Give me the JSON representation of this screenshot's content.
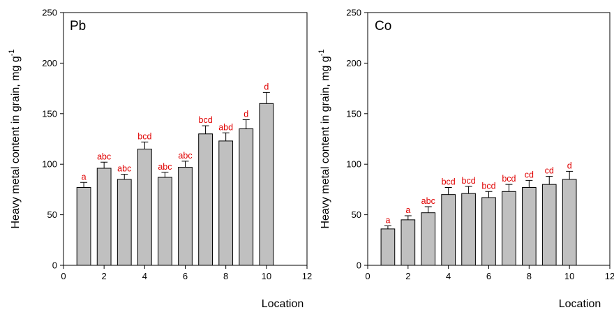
{
  "colors": {
    "bar_fill": "#c0c0c0",
    "bar_stroke": "#000000",
    "letter": "#e00000",
    "axis": "#000000"
  },
  "chart_data": [
    {
      "type": "bar",
      "panel_label": "Pb",
      "xlabel": "Location",
      "ylabel": "Heavy metal content in grain, mg g",
      "ylabel_superscript": "-1",
      "xlim": [
        0,
        12
      ],
      "ylim": [
        0,
        250
      ],
      "x_ticks": [
        0,
        2,
        4,
        6,
        8,
        10,
        12
      ],
      "y_ticks": [
        0,
        50,
        100,
        150,
        200,
        250
      ],
      "x": [
        1,
        2,
        3,
        4,
        5,
        6,
        7,
        8,
        9,
        10
      ],
      "values": [
        77,
        96,
        85,
        115,
        87,
        97,
        130,
        123,
        135,
        160
      ],
      "errors": [
        5,
        6,
        5,
        7,
        5,
        6,
        8,
        8,
        9,
        11
      ],
      "letters": [
        "a",
        "abc",
        "abc",
        "bcd",
        "abc",
        "abc",
        "bcd",
        "abd",
        "d",
        "d"
      ],
      "grid": false
    },
    {
      "type": "bar",
      "panel_label": "Co",
      "xlabel": "Location",
      "ylabel": "Heavy metal content in grain, mg g",
      "ylabel_superscript": "-1",
      "xlim": [
        0,
        12
      ],
      "ylim": [
        0,
        250
      ],
      "x_ticks": [
        0,
        2,
        4,
        6,
        8,
        10,
        12
      ],
      "y_ticks": [
        0,
        50,
        100,
        150,
        200,
        250
      ],
      "x": [
        1,
        2,
        3,
        4,
        5,
        6,
        7,
        8,
        9,
        10
      ],
      "values": [
        36,
        45,
        52,
        70,
        71,
        67,
        73,
        77,
        80,
        85
      ],
      "errors": [
        3,
        4,
        6,
        7,
        7,
        6,
        7,
        7,
        8,
        8
      ],
      "letters": [
        "a",
        "a",
        "abc",
        "bcd",
        "bcd",
        "bcd",
        "bcd",
        "cd",
        "cd",
        "d"
      ],
      "grid": false
    }
  ]
}
